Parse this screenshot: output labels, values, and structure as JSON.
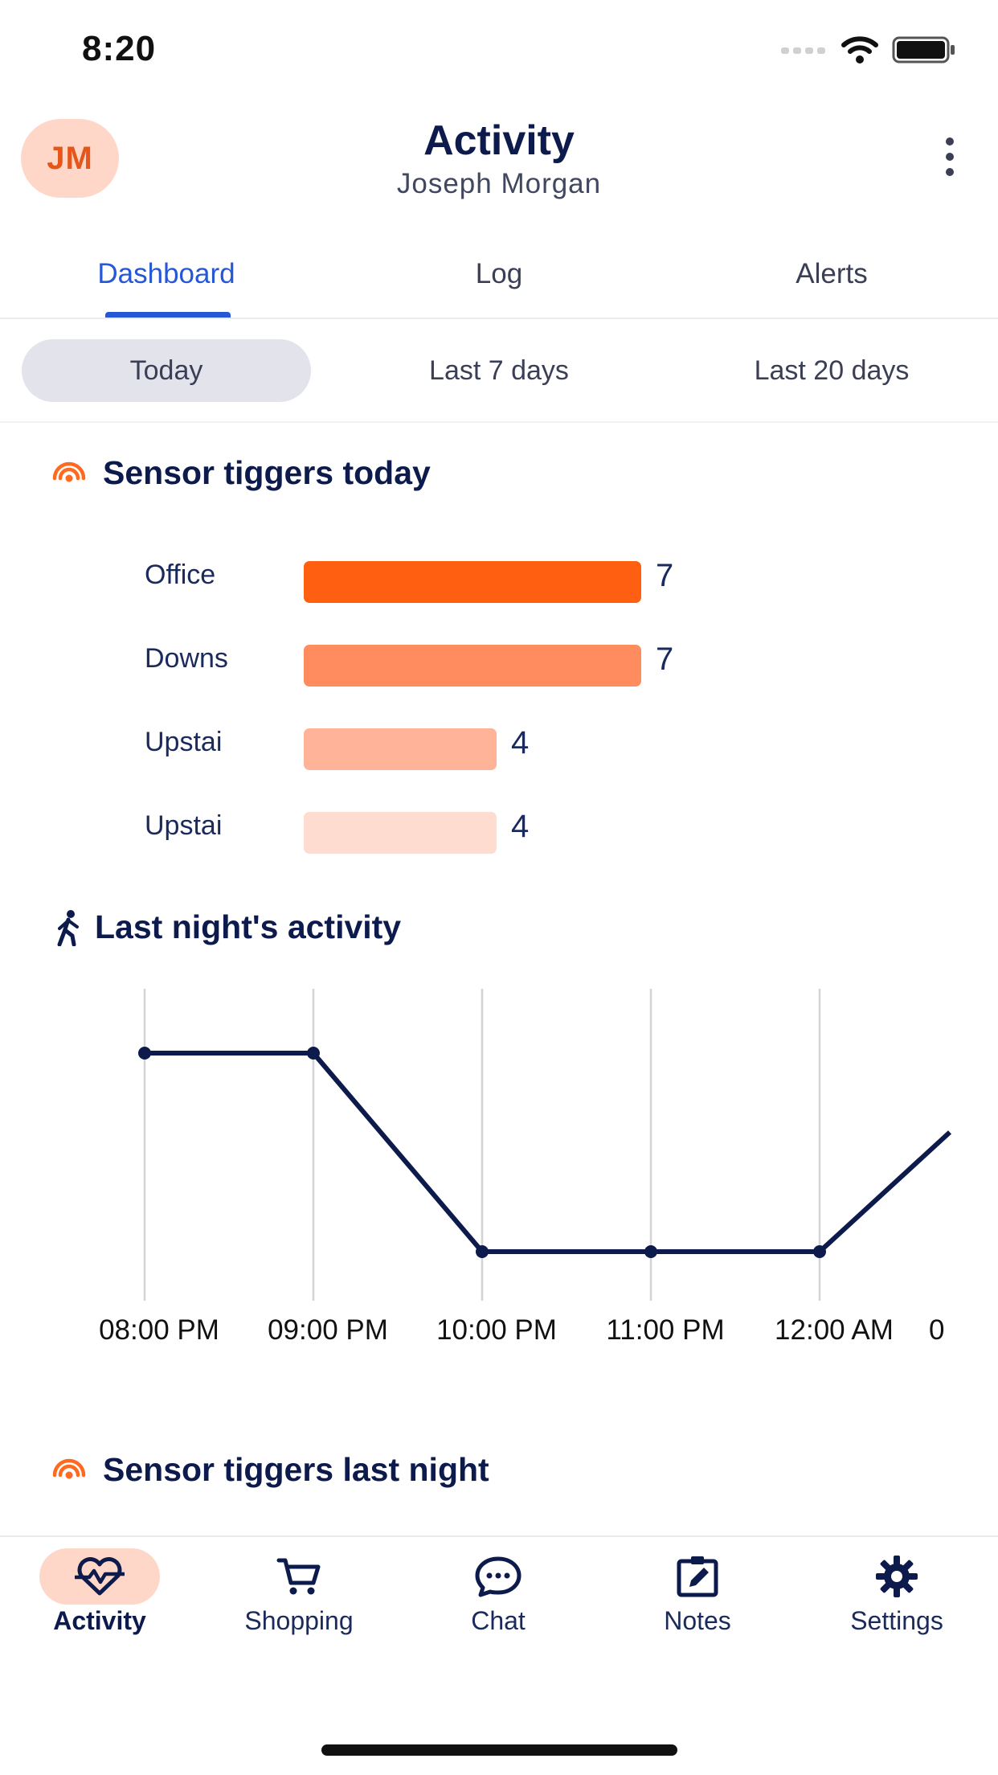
{
  "status_bar": {
    "time": "8:20"
  },
  "header": {
    "avatar_initials": "JM",
    "title": "Activity",
    "subtitle": "Joseph Morgan"
  },
  "tabs": [
    {
      "label": "Dashboard",
      "active": true
    },
    {
      "label": "Log",
      "active": false
    },
    {
      "label": "Alerts",
      "active": false
    }
  ],
  "ranges": [
    {
      "label": "Today",
      "active": true
    },
    {
      "label": "Last 7 days",
      "active": false
    },
    {
      "label": "Last 20 days",
      "active": false
    }
  ],
  "sections": {
    "sensor_today_title": "Sensor tiggers today",
    "activity_title": "Last night's activity",
    "sensor_last_night_title": "Sensor tiggers last night"
  },
  "chart_data": [
    {
      "type": "bar",
      "orientation": "horizontal",
      "categories": [
        "Office",
        "Downs",
        "Upstai",
        "Upstai"
      ],
      "values": [
        7,
        7,
        4,
        4
      ],
      "colors": [
        "#ff5f10",
        "#ff8c5e",
        "#ffb399",
        "#ffdcd0"
      ],
      "xlim": [
        0,
        7
      ]
    },
    {
      "type": "line",
      "x": [
        "08:00 PM",
        "09:00 PM",
        "10:00 PM",
        "11:00 PM",
        "12:00 AM",
        "0"
      ],
      "values": [
        1,
        1,
        0,
        0,
        0,
        0.78
      ],
      "ylim": [
        0,
        1.3
      ],
      "grid": "vertical",
      "color": "#0d1b4c"
    }
  ],
  "bottom_nav": [
    {
      "label": "Activity",
      "icon": "heart-pulse-icon",
      "active": true
    },
    {
      "label": "Shopping",
      "icon": "cart-icon",
      "active": false
    },
    {
      "label": "Chat",
      "icon": "chat-bubble-icon",
      "active": false
    },
    {
      "label": "Notes",
      "icon": "notes-icon",
      "active": false
    },
    {
      "label": "Settings",
      "icon": "gear-icon",
      "active": false
    }
  ],
  "colors": {
    "accent": "#2557d6",
    "orange": "#ff5f10",
    "navy": "#0d1b4c"
  }
}
